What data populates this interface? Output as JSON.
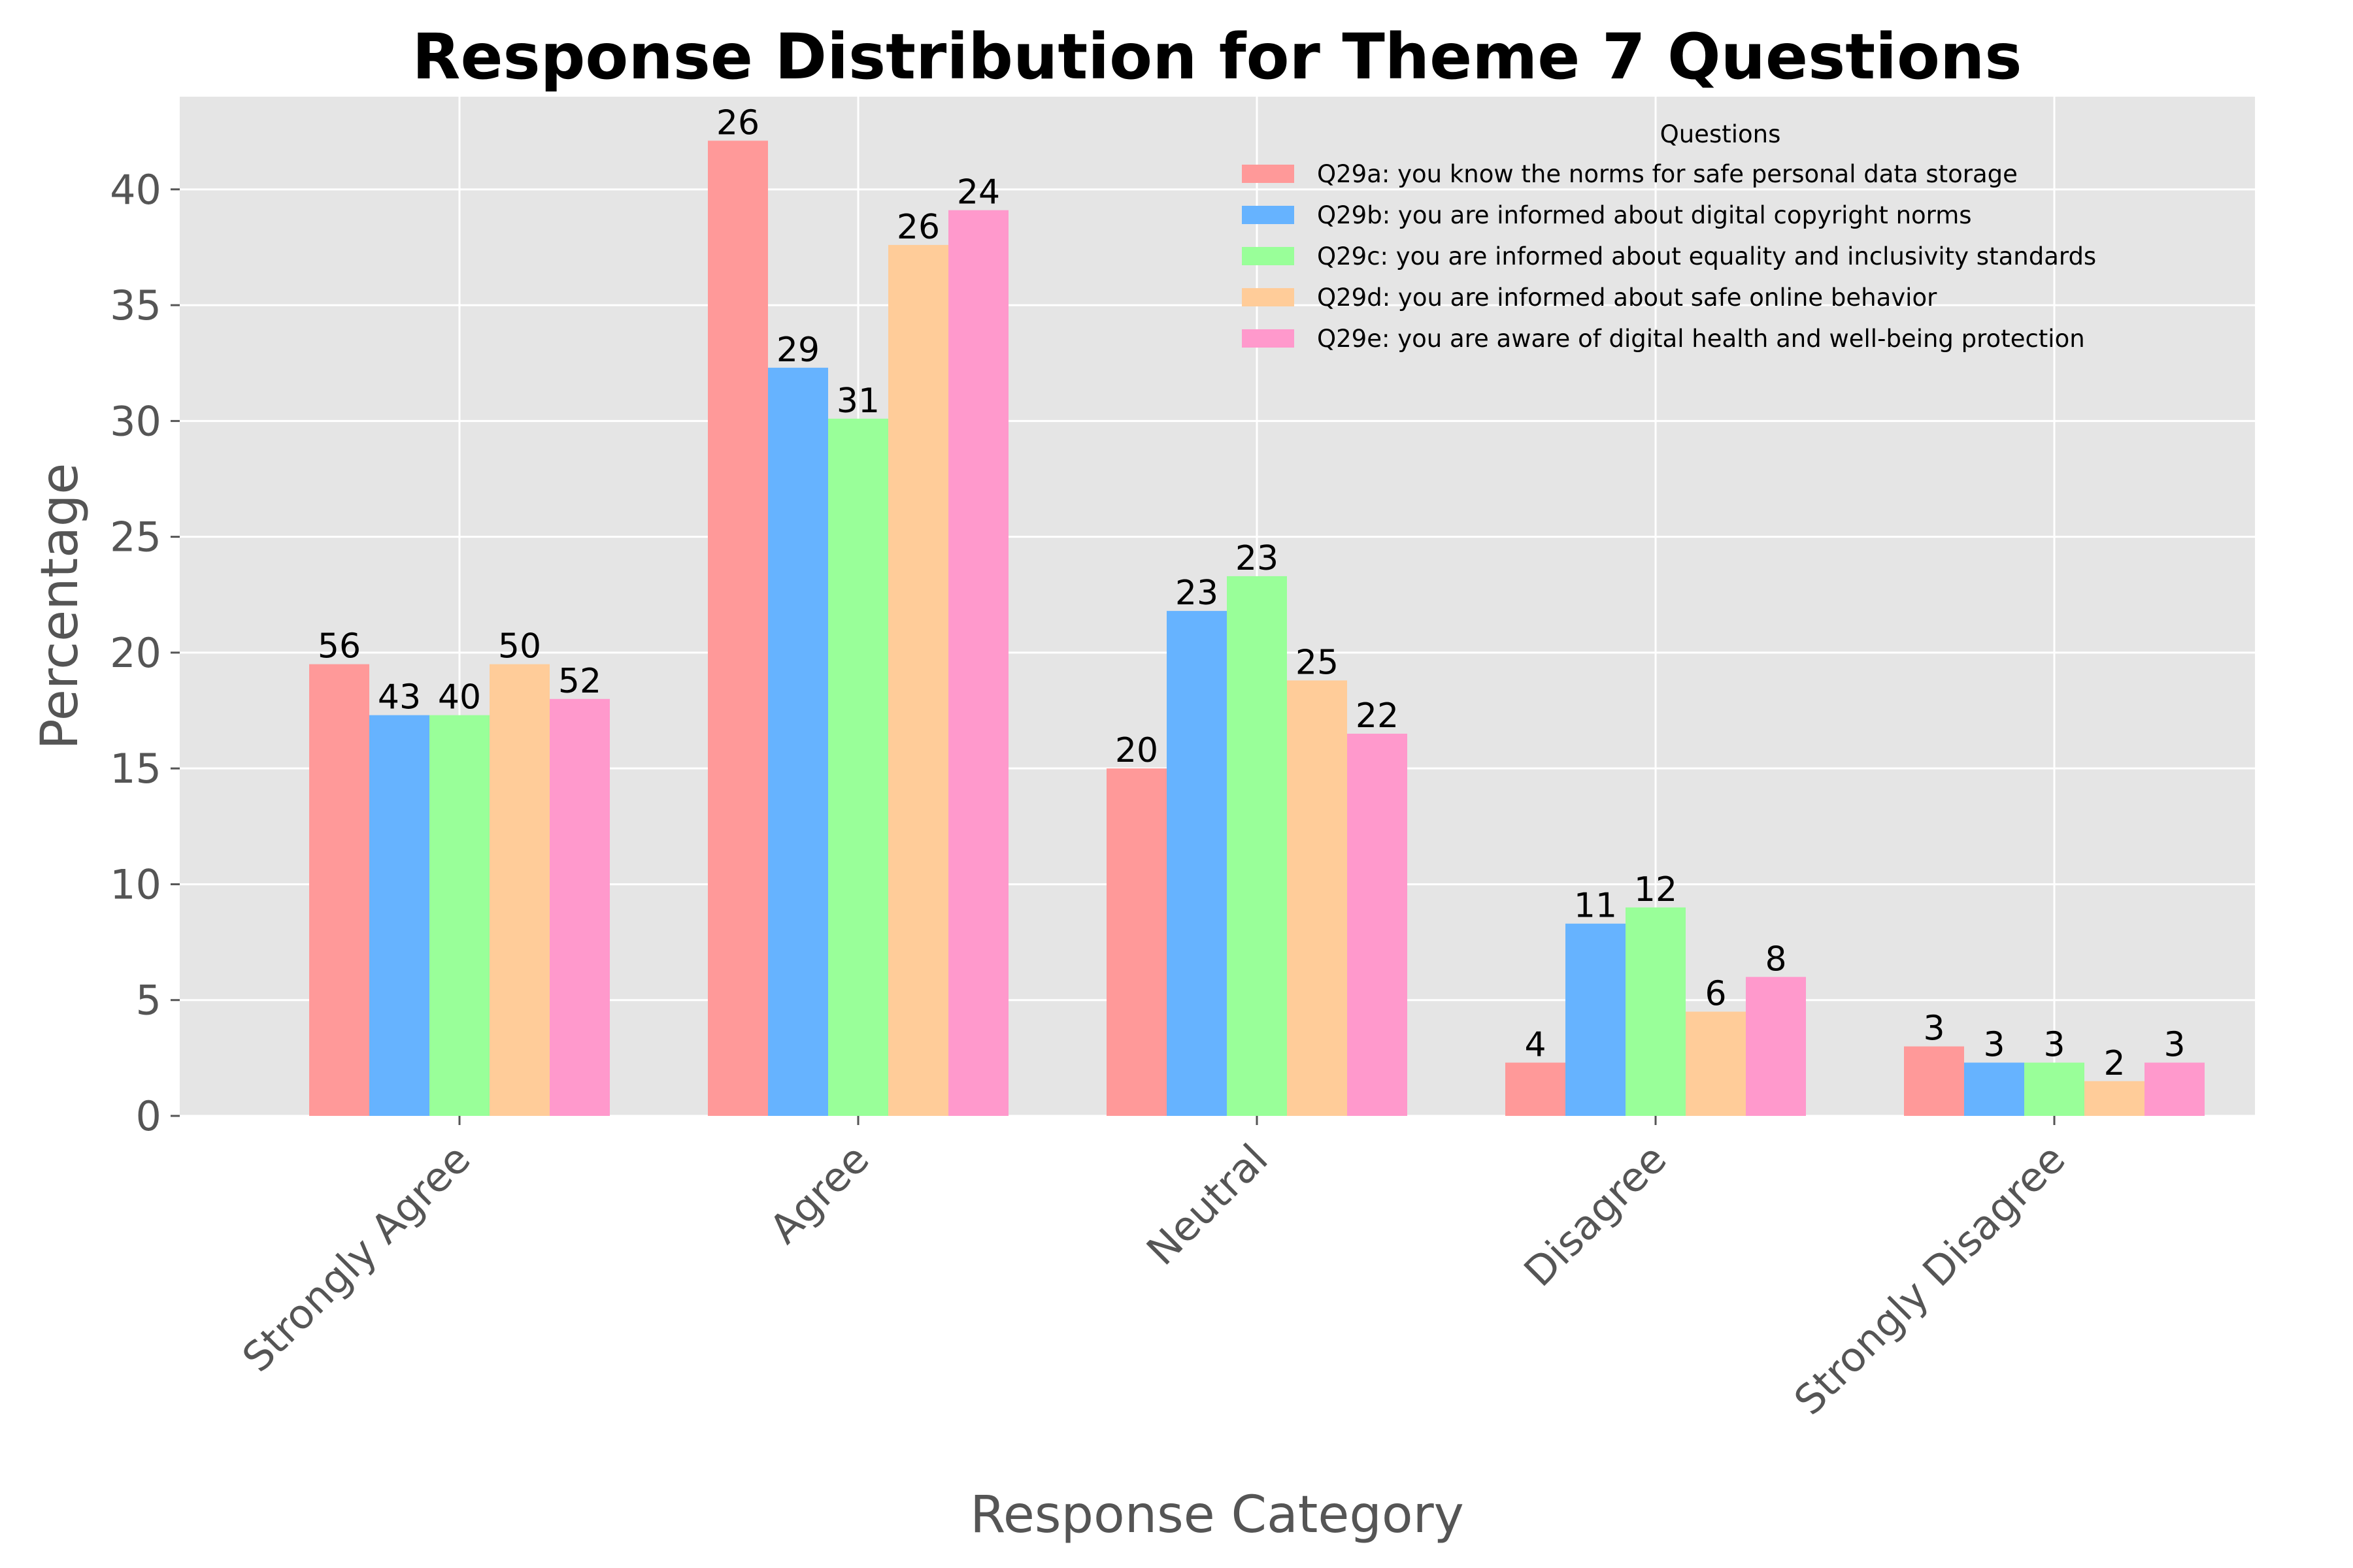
{
  "chart_data": {
    "type": "bar",
    "title": "Response Distribution for Theme 7 Questions",
    "xlabel": "Response Category",
    "ylabel": "Percentage",
    "ylim": [
      0,
      44
    ],
    "yticks": [
      0,
      5,
      10,
      15,
      20,
      25,
      30,
      35,
      40
    ],
    "grid": true,
    "legend_title": "Questions",
    "legend_position": "top-right",
    "categories": [
      "Strongly Agree",
      "Agree",
      "Neutral",
      "Disagree",
      "Strongly Disagree"
    ],
    "series": [
      {
        "name": "Q29a: you know the norms for safe personal data storage",
        "color": "#ff9999",
        "values": [
          19.5,
          42.1,
          15.0,
          2.3,
          3.0
        ],
        "labels": [
          "56",
          "26",
          "20",
          "4",
          "3"
        ]
      },
      {
        "name": "Q29b: you are informed about digital copyright norms",
        "color": "#66b3ff",
        "values": [
          17.3,
          32.3,
          21.8,
          8.3,
          2.3
        ],
        "labels": [
          "43",
          "29",
          "23",
          "11",
          "3"
        ]
      },
      {
        "name": "Q29c: you are informed about equality and inclusivity standards",
        "color": "#99ff99",
        "values": [
          17.3,
          30.1,
          23.3,
          9.0,
          2.3
        ],
        "labels": [
          "40",
          "31",
          "23",
          "12",
          "3"
        ]
      },
      {
        "name": "Q29d: you are informed about safe online behavior",
        "color": "#ffcc99",
        "values": [
          19.5,
          37.6,
          18.8,
          4.5,
          1.5
        ],
        "labels": [
          "50",
          "26",
          "25",
          "6",
          "2"
        ]
      },
      {
        "name": "Q29e: you are aware of digital health and well-being protection",
        "color": "#ff99cc",
        "values": [
          18.0,
          39.1,
          16.5,
          6.0,
          2.3
        ],
        "labels": [
          "52",
          "24",
          "22",
          "8",
          "3"
        ]
      }
    ]
  }
}
